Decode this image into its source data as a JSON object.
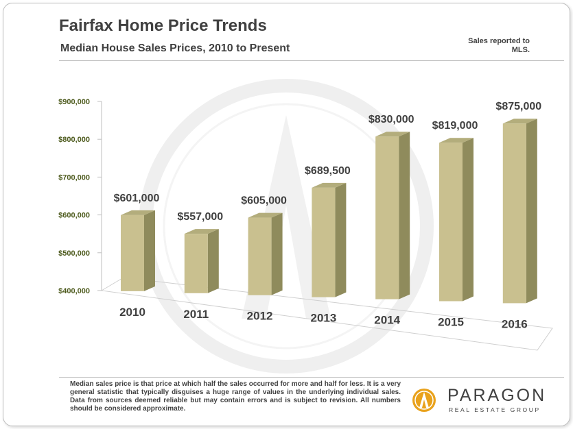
{
  "header": {
    "title": "Fairfax Home Price Trends",
    "subtitle": "Median House Sales Prices, 2010 to Present",
    "note": "Sales reported to MLS."
  },
  "footer": {
    "footnote": "Median sales price is that price at which half the sales occurred for more and half for less. It is a very general statistic that typically disguises a huge range of values in the underlying individual sales. Data from sources deemed reliable but may contain errors and is subject to revision. All numbers should be considered approximate.",
    "logo_name": "PARAGON",
    "logo_tagline": "REAL ESTATE GROUP"
  },
  "colors": {
    "bar_front": "#c9c08f",
    "bar_side": "#8f8b5c",
    "bar_top": "#b3ad7c",
    "axis_label": "#4e5b1e",
    "text": "#404040"
  },
  "chart_data": {
    "type": "bar",
    "categories": [
      "2010",
      "2011",
      "2012",
      "2013",
      "2014",
      "2015",
      "2016"
    ],
    "values": [
      601000,
      557000,
      605000,
      689500,
      830000,
      819000,
      875000
    ],
    "data_labels": [
      "$601,000",
      "$557,000",
      "$605,000",
      "$689,500",
      "$830,000",
      "$819,000",
      "$875,000"
    ],
    "ylim": [
      400000,
      900000
    ],
    "yticks": [
      400000,
      500000,
      600000,
      700000,
      800000,
      900000
    ],
    "ytick_labels": [
      "$400,000",
      "$500,000",
      "$600,000",
      "$700,000",
      "$800,000",
      "$900,000"
    ],
    "title": "Fairfax Home Price Trends",
    "xlabel": "",
    "ylabel": "",
    "legend": "none",
    "grid": false,
    "style": "3d"
  }
}
